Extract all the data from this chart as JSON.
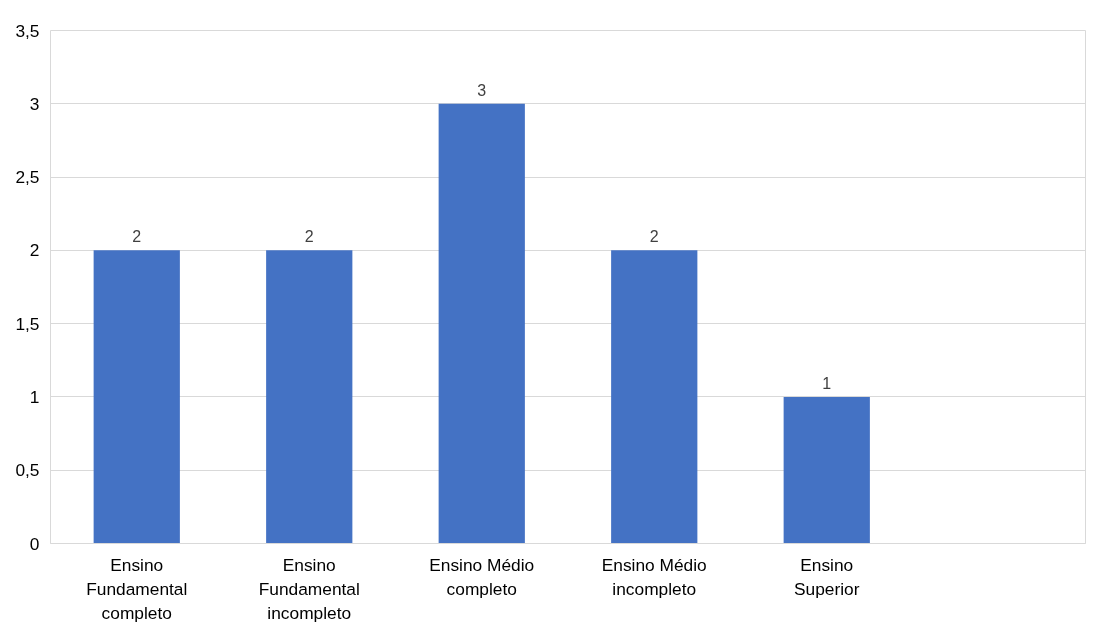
{
  "chart_data": {
    "type": "bar",
    "categories": [
      "Ensino Fundamental completo",
      "Ensino Fundamental incompleto",
      "Ensino Médio completo",
      "Ensino Médio incompleto",
      "Ensino Superior",
      null
    ],
    "values": [
      2,
      2,
      3,
      2,
      1,
      null
    ],
    "color": "#4472c4",
    "ylim": [
      0,
      3.5
    ],
    "yticks": [
      0,
      {
        "value": 0.5,
        "label": "0,5"
      },
      1,
      {
        "value": 1.5,
        "label": "1,5"
      },
      2,
      {
        "value": 2.5,
        "label": "2,5"
      },
      3,
      {
        "value": 3.5,
        "label": "3,5"
      }
    ],
    "grid": "y",
    "data_labels": true
  }
}
